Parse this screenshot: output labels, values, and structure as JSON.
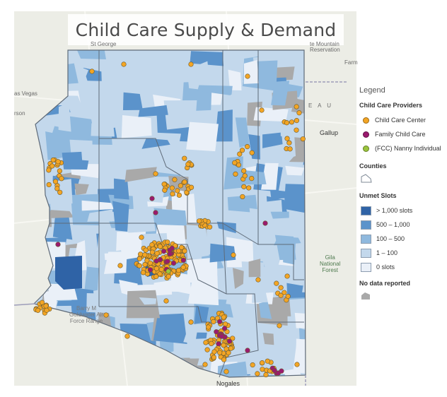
{
  "title": "Child Care Supply & Demand",
  "legend": {
    "heading": "Legend",
    "providers_title": "Child Care Providers",
    "providers": [
      {
        "label": "Child Care Center",
        "color": "#f3a524"
      },
      {
        "label": "Family Child Care",
        "color": "#9a1a6e"
      },
      {
        "label": "(FCC) Nanny Individual",
        "color": "#9bc53d"
      }
    ],
    "counties_title": "Counties",
    "unmet_title": "Unmet Slots",
    "unmet_classes": [
      {
        "label": "> 1,000 slots",
        "color": "#2f63a6"
      },
      {
        "label": "500 – 1,000",
        "color": "#5b93cb"
      },
      {
        "label": "100 – 500",
        "color": "#8fb9de"
      },
      {
        "label": "1 – 100",
        "color": "#c3d8ec"
      },
      {
        "label": "0 slots",
        "color": "#eaf0f8"
      }
    ],
    "nodata_title": "No data reported",
    "nodata_color": "#a9a9a9"
  },
  "places": {
    "vegas": "as Vegas",
    "henderson": "rson",
    "st_george": "St George",
    "reservation": "Reservation",
    "mountain": "te Mountain",
    "farm": "Farm",
    "eau": "E A U",
    "gallup": "Gallup",
    "gila": "Gila\nNational\nForest",
    "barry": "Barry M\nGoldwater Air\nForce Range",
    "nogales": "Nogales"
  },
  "colors": {
    "basemap": "#ecede6",
    "county_border": "#5e6a78",
    "state_border": "#9d9db9"
  }
}
